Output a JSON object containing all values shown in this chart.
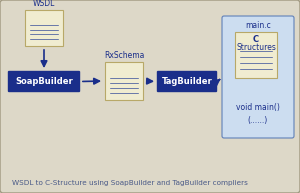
{
  "bg_color": "#ddd8c8",
  "border_color": "#a09880",
  "dark_blue": "#1a2e8a",
  "light_blue": "#ccddf0",
  "light_blue_border": "#6080b8",
  "doc_bg": "#f0ecd0",
  "doc_border": "#b8a868",
  "doc_line": "#6878a8",
  "text_white": "#ffffff",
  "text_dark_blue": "#1a2e8a",
  "text_mid_blue": "#3a4a9a",
  "text_gray_blue": "#4a5a88",
  "caption": "WSDL to C-Structure using SoapBuilder and TagBuilder compliers",
  "wsdl_label": "WSDL",
  "soap_label": "SoapBuilder",
  "rxschema_label": "RxSchema",
  "tag_label": "TagBuilder",
  "mainc_label": "main.c",
  "cstruct_label1": "C",
  "cstruct_label2": "Structures",
  "voidmain_label": "void main()\n(......)",
  "figsize": [
    3.0,
    1.93
  ],
  "dpi": 100
}
